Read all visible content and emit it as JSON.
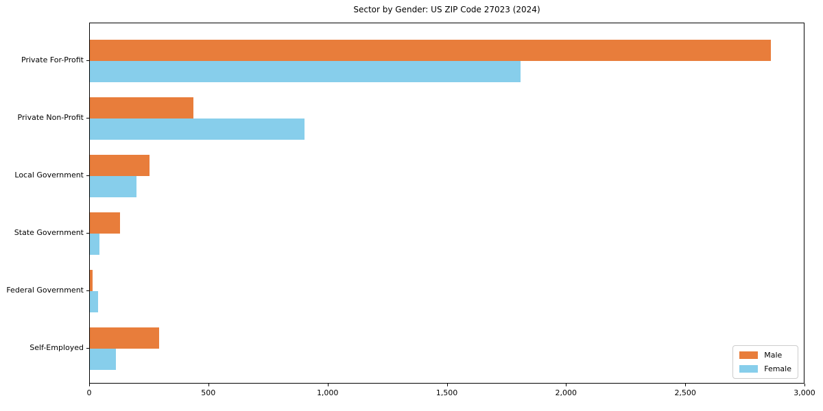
{
  "chart_data": {
    "type": "bar",
    "orientation": "horizontal",
    "title": "Sector by Gender: US ZIP Code 27023 (2024)",
    "categories": [
      "Private For-Profit",
      "Private Non-Profit",
      "Local Government",
      "State Government",
      "Federal Government",
      "Self-Employed"
    ],
    "series": [
      {
        "name": "Male",
        "color": "#e87d3b",
        "values": [
          2855,
          435,
          250,
          125,
          12,
          290
        ]
      },
      {
        "name": "Female",
        "color": "#87ceeb",
        "values": [
          1805,
          900,
          195,
          40,
          35,
          110
        ]
      }
    ],
    "xlim": [
      0,
      3000
    ],
    "xticks": [
      {
        "value": 0,
        "label": "0"
      },
      {
        "value": 500,
        "label": "500"
      },
      {
        "value": 1000,
        "label": "1,000"
      },
      {
        "value": 1500,
        "label": "1,500"
      },
      {
        "value": 2000,
        "label": "2,000"
      },
      {
        "value": 2500,
        "label": "2,500"
      },
      {
        "value": 3000,
        "label": "3,000"
      }
    ],
    "grid": false,
    "legend_position": "lower right",
    "xlabel": "",
    "ylabel": "",
    "background_color": "#ffffff",
    "axis_color": "#000000"
  }
}
